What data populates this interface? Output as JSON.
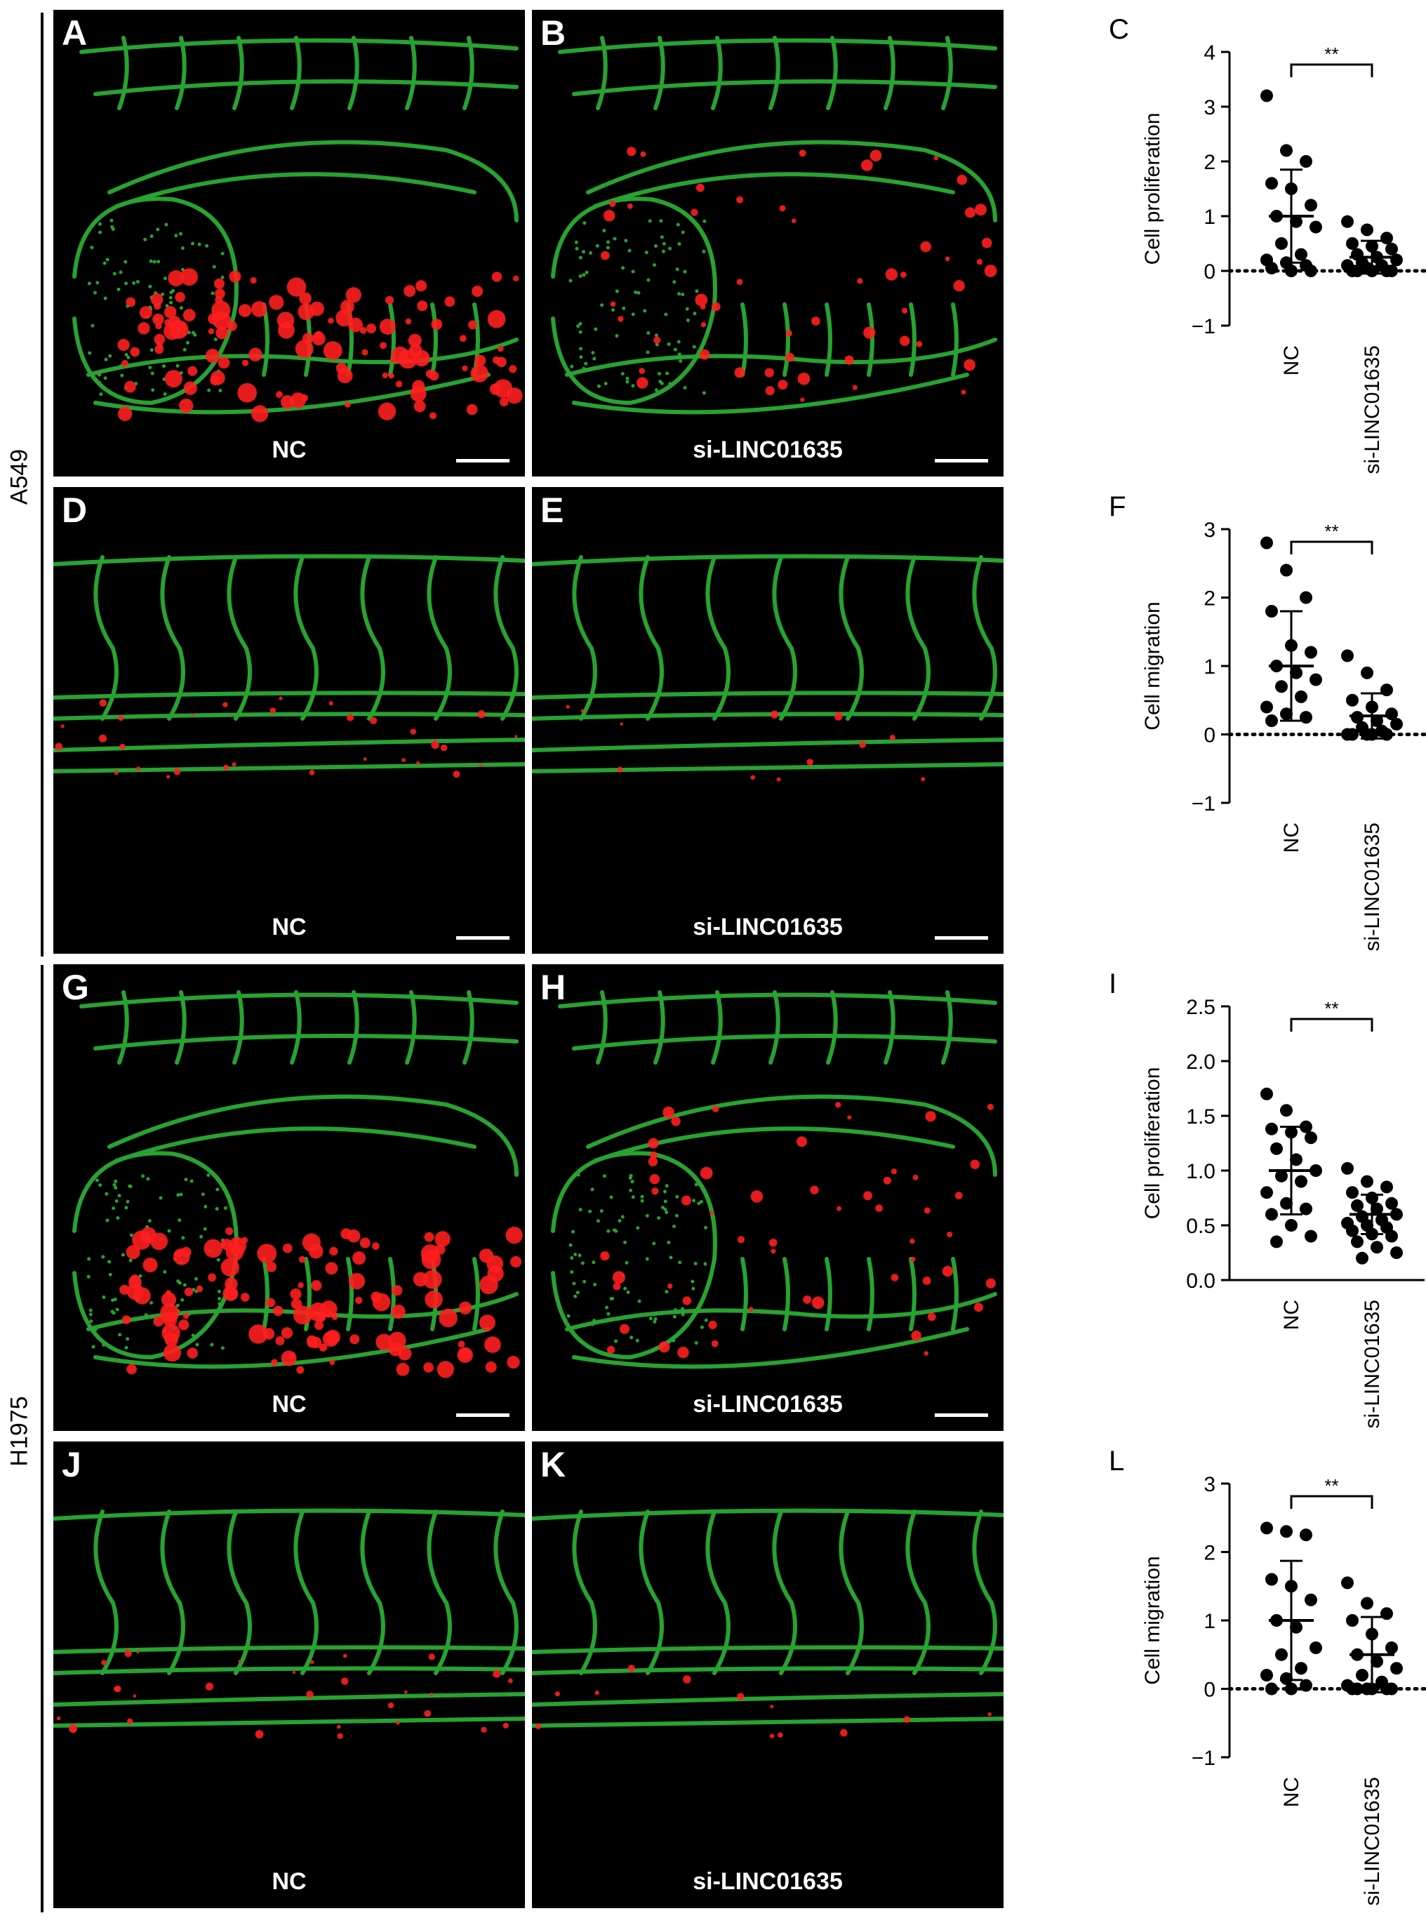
{
  "figure": {
    "groups": [
      {
        "label": "A549"
      },
      {
        "label": "H1975"
      }
    ],
    "image_panels": [
      {
        "letter": "A",
        "condition": "NC",
        "scene": "trunk"
      },
      {
        "letter": "B",
        "condition": "si-LINC01635",
        "scene": "trunk"
      },
      {
        "letter": "D",
        "condition": "NC",
        "scene": "tail"
      },
      {
        "letter": "E",
        "condition": "si-LINC01635",
        "scene": "tail"
      },
      {
        "letter": "G",
        "condition": "NC",
        "scene": "trunk"
      },
      {
        "letter": "H",
        "condition": "si-LINC01635",
        "scene": "trunk"
      },
      {
        "letter": "J",
        "condition": "NC",
        "scene": "tail"
      },
      {
        "letter": "K",
        "condition": "si-LINC01635",
        "scene": "tail"
      }
    ],
    "colors": {
      "vessel": "#2fbf3a",
      "tumor": "#ff1e1e",
      "background": "#000000"
    }
  },
  "chart_data": [
    {
      "letter": "C",
      "type": "scatter",
      "ylabel": "Cell proliferation",
      "categories": [
        "NC",
        "si-LINC01635"
      ],
      "ylim": [
        -1,
        4
      ],
      "yticks": [
        "−1",
        "0",
        "1",
        "2",
        "3",
        "4"
      ],
      "significance": "**",
      "series": [
        {
          "values": [
            3.2,
            2.2,
            2.0,
            1.6,
            1.5,
            1.2,
            1.0,
            0.9,
            0.8,
            0.5,
            0.3,
            0.2,
            0.15,
            0.1,
            0.05,
            0.0,
            0.0
          ],
          "mean": 1.0,
          "sd": 0.85
        },
        {
          "values": [
            0.9,
            0.75,
            0.6,
            0.5,
            0.45,
            0.4,
            0.3,
            0.25,
            0.2,
            0.15,
            0.1,
            0.1,
            0.05,
            0.0,
            0.0,
            0.0,
            0.0,
            0.0
          ],
          "mean": 0.25,
          "sd": 0.3
        }
      ]
    },
    {
      "letter": "F",
      "type": "scatter",
      "ylabel": "Cell migration",
      "categories": [
        "NC",
        "si-LINC01635"
      ],
      "ylim": [
        -1,
        3
      ],
      "yticks": [
        "−1",
        "0",
        "1",
        "2",
        "3"
      ],
      "significance": "**",
      "series": [
        {
          "values": [
            2.8,
            2.4,
            2.0,
            1.8,
            1.3,
            1.2,
            1.0,
            0.9,
            0.8,
            0.7,
            0.55,
            0.4,
            0.3,
            0.25,
            0.2
          ],
          "mean": 1.0,
          "sd": 0.8
        },
        {
          "values": [
            1.15,
            0.9,
            0.65,
            0.5,
            0.4,
            0.3,
            0.25,
            0.2,
            0.15,
            0.1,
            0.05,
            0.0,
            0.0,
            0.0,
            0.0,
            0.0
          ],
          "mean": 0.27,
          "sd": 0.33
        }
      ]
    },
    {
      "letter": "I",
      "type": "scatter",
      "ylabel": "Cell proliferation",
      "categories": [
        "NC",
        "si-LINC01635"
      ],
      "ylim": [
        0,
        2.5
      ],
      "yticks": [
        "0.0",
        "0.5",
        "1.0",
        "1.5",
        "2.0",
        "2.5"
      ],
      "significance": "**",
      "series": [
        {
          "values": [
            1.7,
            1.55,
            1.4,
            1.38,
            1.35,
            1.3,
            1.2,
            1.1,
            1.0,
            0.95,
            0.9,
            0.8,
            0.7,
            0.65,
            0.6,
            0.5,
            0.4,
            0.35
          ],
          "mean": 1.0,
          "sd": 0.4
        },
        {
          "values": [
            1.02,
            0.9,
            0.85,
            0.8,
            0.75,
            0.7,
            0.68,
            0.65,
            0.6,
            0.58,
            0.55,
            0.52,
            0.5,
            0.48,
            0.45,
            0.42,
            0.4,
            0.35,
            0.3,
            0.25,
            0.2
          ],
          "mean": 0.6,
          "sd": 0.18
        }
      ]
    },
    {
      "letter": "L",
      "type": "scatter",
      "ylabel": "Cell migration",
      "categories": [
        "NC",
        "si-LINC01635"
      ],
      "ylim": [
        -1,
        3
      ],
      "yticks": [
        "−1",
        "0",
        "1",
        "2",
        "3"
      ],
      "significance": "**",
      "series": [
        {
          "values": [
            2.35,
            2.3,
            2.25,
            1.6,
            1.5,
            1.3,
            1.0,
            0.9,
            0.6,
            0.5,
            0.3,
            0.2,
            0.15,
            0.05,
            0.0,
            0.0
          ],
          "mean": 1.0,
          "sd": 0.87
        },
        {
          "values": [
            1.55,
            1.25,
            1.1,
            1.0,
            0.8,
            0.6,
            0.5,
            0.4,
            0.3,
            0.2,
            0.1,
            0.05,
            0.0,
            0.0,
            0.0,
            0.0,
            0.0,
            0.0
          ],
          "mean": 0.5,
          "sd": 0.55
        }
      ]
    }
  ]
}
